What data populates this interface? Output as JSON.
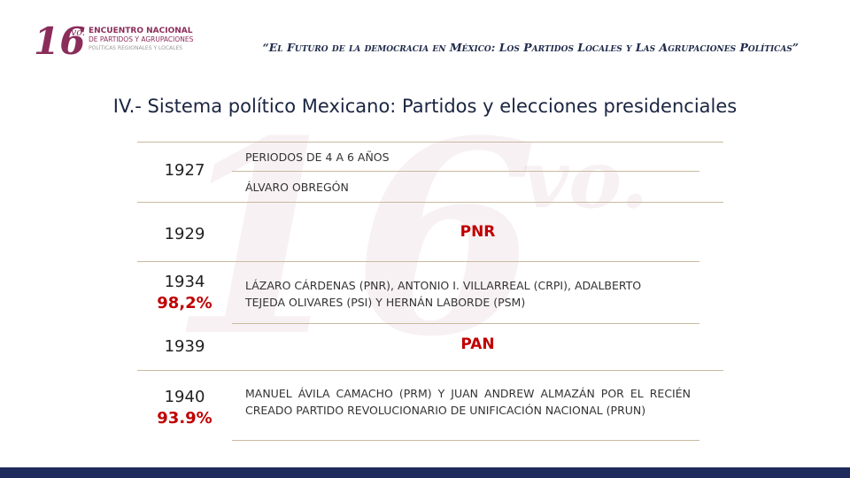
{
  "header": {
    "logo": {
      "number": "16",
      "suffix": "vo.",
      "lines": [
        "ENCUENTRO NACIONAL",
        "DE PARTIDOS Y AGRUPACIONES",
        "POLÍTICAS REGIONALES Y LOCALES"
      ]
    },
    "quote": "“El Futuro de la democracia en México: Los Partidos Locales y Las Agrupaciones Políticas”"
  },
  "title": "IV.- Sistema político Mexicano: Partidos y elecciones presidenciales",
  "table": {
    "rows": [
      {
        "year": "1927",
        "items": [
          "PERIODOS DE 4 A 6 AÑOS",
          "ÁLVARO OBREGÓN"
        ]
      },
      {
        "year": "1929",
        "party": "PNR"
      },
      {
        "year": "1934",
        "percent": "98,2%",
        "text": "LÁZARO CÁRDENAS (PNR), ANTONIO I. VILLARREAL (CRPI), ADALBERTO TEJEDA OLIVARES (PSI) Y HERNÁN LABORDE (PSM)"
      },
      {
        "year": "1939",
        "party": "PAN"
      },
      {
        "year": "1940",
        "percent": "93.9%",
        "text": "MANUEL ÁVILA CAMACHO (PRM) Y JUAN ANDREW ALMAZÁN POR EL RECIÉN CREADO PARTIDO REVOLUCIONARIO DE UNIFICACIÓN NACIONAL (PRUN)"
      }
    ]
  }
}
